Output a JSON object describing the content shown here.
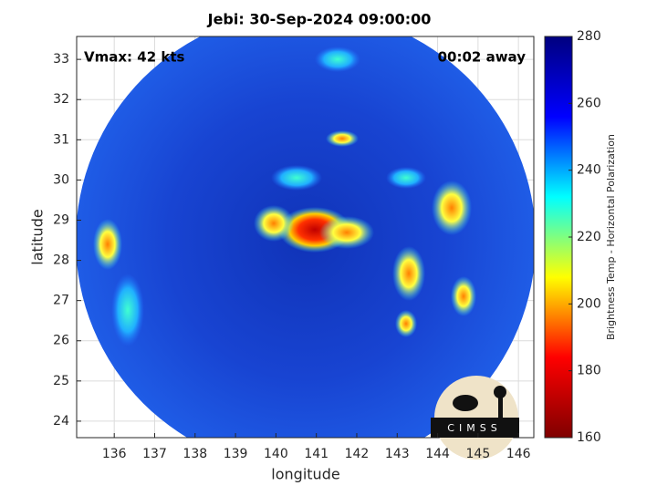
{
  "chart_data": {
    "type": "image",
    "title": "Jebi: 30-Sep-2024 09:00:00",
    "annotations": [
      "Vmax: 42 kts",
      "00:02 away"
    ],
    "xlabel": "longitude",
    "ylabel": "latitude",
    "xlim": [
      135.07,
      146.38
    ],
    "xticks": [
      136,
      137,
      138,
      139,
      140,
      141,
      142,
      143,
      144,
      145,
      146
    ],
    "ylim": [
      23.59,
      33.57
    ],
    "yticks": [
      24,
      25,
      26,
      27,
      28,
      29,
      30,
      31,
      32,
      33
    ],
    "grid": true,
    "colorbar": {
      "label": "Brightness Temp - Horizontal Polarization",
      "lim": [
        160,
        280
      ],
      "ticks": [
        160,
        180,
        200,
        220,
        240,
        260,
        280
      ],
      "colormap": "jet"
    },
    "logo": "CIMSS"
  }
}
